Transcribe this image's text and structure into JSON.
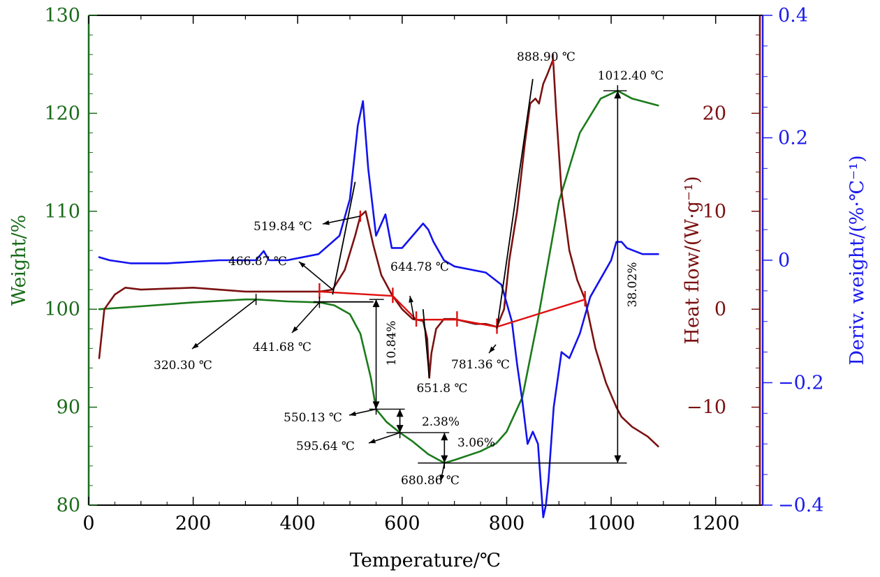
{
  "chart_data": {
    "type": "line",
    "title": "",
    "xlabel": "Temperature/℃",
    "x_range": [
      0,
      1290
    ],
    "x_ticks": [
      0,
      200,
      400,
      600,
      800,
      1000,
      1200
    ],
    "x_tick_labels": [
      "0",
      "200",
      "400",
      "600",
      "800",
      "1000",
      "1200"
    ],
    "axes": {
      "left": {
        "label": "Weight/%",
        "color": "#1a6b1a",
        "range": [
          80,
          130
        ],
        "ticks": [
          80,
          90,
          100,
          110,
          120,
          130
        ],
        "tick_labels": [
          "80",
          "90",
          "100",
          "110",
          "120",
          "130"
        ]
      },
      "right1": {
        "label": "Heat flow/(W·g⁻¹)",
        "color": "#7a1010",
        "range": [
          -20,
          30
        ],
        "ticks": [
          -10,
          0,
          10,
          20
        ],
        "tick_labels": [
          "−10",
          "0",
          "10",
          "20"
        ]
      },
      "right2": {
        "label": "Deriv. weight/(%·℃⁻¹)",
        "color": "#1a1aee",
        "range": [
          -0.4,
          0.4
        ],
        "ticks": [
          -0.4,
          -0.2,
          0,
          0.2,
          0.4
        ],
        "tick_labels": [
          "−0.4",
          "−0.2",
          "0",
          "0.2",
          "0.4"
        ]
      }
    },
    "series": [
      {
        "name": "Weight (TG)",
        "axis": "left",
        "color": "#1a7a1a",
        "x": [
          20,
          100,
          200,
          300,
          320,
          380,
          441.68,
          470,
          500,
          520,
          540,
          550.13,
          570,
          595.64,
          620,
          650,
          680.86,
          700,
          750,
          780,
          800,
          830,
          860,
          900,
          940,
          980,
          1012.4,
          1040,
          1090
        ],
        "y": [
          100,
          100.3,
          100.7,
          101,
          101,
          100.8,
          100.7,
          100.4,
          99.5,
          97.5,
          93,
          89.8,
          88.5,
          87.4,
          86.5,
          85.2,
          84.3,
          84.6,
          85.5,
          86.3,
          87.5,
          91,
          99,
          111,
          118,
          121.5,
          122.3,
          121.5,
          120.8
        ]
      },
      {
        "name": "Heat flow (DSC)",
        "axis": "right1",
        "color": "#7b1111",
        "x": [
          20,
          30,
          50,
          70,
          100,
          200,
          300,
          350,
          400,
          441.68,
          466.87,
          490,
          510,
          519.84,
          530,
          545,
          560,
          580,
          600,
          620,
          640,
          648,
          651.8,
          656,
          665,
          680,
          700,
          740,
          760,
          781.36,
          795,
          805,
          820,
          835,
          845,
          855,
          862,
          870,
          878,
          888.9,
          895,
          905,
          920,
          935,
          950,
          970,
          990,
          1010,
          1020,
          1040,
          1070,
          1090
        ],
        "y": [
          -5,
          0,
          1.5,
          2.2,
          2,
          2.2,
          1.8,
          1.8,
          1.8,
          1.8,
          2,
          4,
          7.5,
          9.5,
          10,
          6.5,
          3.5,
          1.5,
          0,
          -1,
          -1.2,
          -3,
          -7,
          -4.5,
          -2,
          -1,
          -1,
          -1.5,
          -1.5,
          -1.8,
          0,
          5,
          10,
          17,
          21,
          21.5,
          21,
          23,
          24,
          25.5,
          20,
          12,
          6,
          3,
          1,
          -4,
          -7.5,
          -10,
          -11,
          -12,
          -13,
          -14
        ]
      },
      {
        "name": "Deriv. weight (DTG)",
        "axis": "right2",
        "color": "#1212ee",
        "x": [
          20,
          40,
          80,
          150,
          250,
          320,
          335,
          345,
          380,
          440,
          480,
          500,
          515,
          525,
          535,
          550,
          568,
          580,
          600,
          620,
          640,
          650,
          660,
          680,
          700,
          760,
          790,
          810,
          820,
          830,
          840,
          850,
          860,
          870,
          875,
          880,
          890,
          905,
          920,
          940,
          960,
          980,
          1000,
          1010,
          1020,
          1030,
          1060,
          1090
        ],
        "y": [
          0.005,
          0.0,
          -0.005,
          -0.005,
          0.0,
          0.0,
          0.015,
          0.0,
          0.0,
          0.01,
          0.04,
          0.1,
          0.22,
          0.26,
          0.15,
          0.04,
          0.075,
          0.02,
          0.02,
          0.04,
          0.06,
          0.05,
          0.03,
          0.0,
          -0.01,
          -0.02,
          -0.04,
          -0.1,
          -0.17,
          -0.23,
          -0.3,
          -0.28,
          -0.3,
          -0.42,
          -0.4,
          -0.36,
          -0.24,
          -0.15,
          -0.16,
          -0.12,
          -0.06,
          -0.03,
          0.0,
          0.03,
          0.03,
          0.02,
          0.01,
          0.01
        ]
      }
    ],
    "annotations": {
      "tg_points": [
        {
          "label": "320.30 ℃",
          "x": 320.3
        },
        {
          "label": "441.68 ℃",
          "x": 441.68
        },
        {
          "label": "550.13 ℃",
          "x": 550.13
        },
        {
          "label": "595.64 ℃",
          "x": 595.64
        },
        {
          "label": "680.86 ℃",
          "x": 680.86
        },
        {
          "label": "1012.40 ℃",
          "x": 1012.4
        }
      ],
      "dsc_points": [
        {
          "label": "466.87 ℃",
          "x": 466.87
        },
        {
          "label": "519.84 ℃",
          "x": 519.84
        },
        {
          "label": "644.78 ℃",
          "x": 644.78
        },
        {
          "label": "651.8 ℃",
          "x": 651.8
        },
        {
          "label": "781.36 ℃",
          "x": 781.36
        },
        {
          "label": "888.90 ℃",
          "x": 888.9
        }
      ],
      "mass_changes": [
        {
          "label": "10.84%",
          "x": 550.13
        },
        {
          "label": "2.38%",
          "x": 595.64
        },
        {
          "label": "3.06%",
          "x": 680.86
        },
        {
          "label": "38.02%",
          "x": 1012.4
        }
      ]
    }
  }
}
